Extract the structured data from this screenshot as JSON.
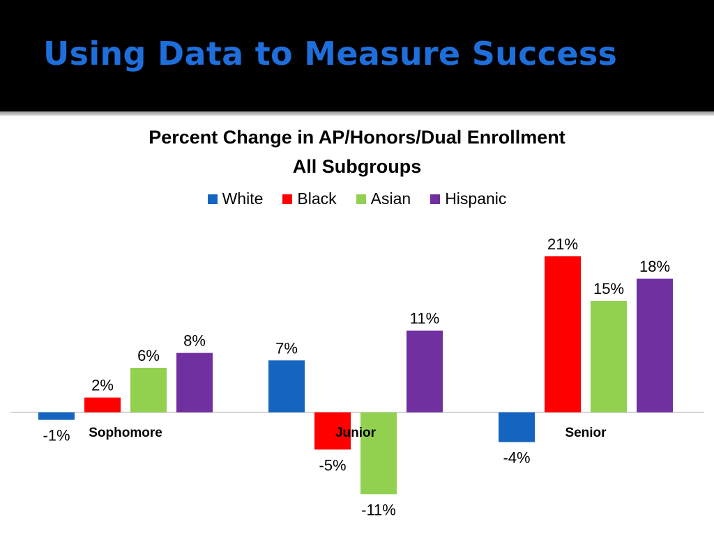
{
  "slide": {
    "title": "Using Data to Measure Success"
  },
  "chart_data": {
    "type": "bar",
    "title": "Percent Change in AP/Honors/Dual Enrollment",
    "subtitle": "All Subgroups",
    "categories": [
      "Sophomore",
      "Junior",
      "Senior"
    ],
    "series": [
      {
        "name": "White",
        "color": "#1565c0",
        "values": [
          -1,
          7,
          -4
        ],
        "labels": [
          "-1%",
          "7%",
          "-4%"
        ]
      },
      {
        "name": "Black",
        "color": "#ff0000",
        "values": [
          2,
          -5,
          21
        ],
        "labels": [
          "2%",
          "-5%",
          "21%"
        ]
      },
      {
        "name": "Asian",
        "color": "#92d050",
        "values": [
          6,
          -11,
          15
        ],
        "labels": [
          "6%",
          "-11%",
          "15%"
        ]
      },
      {
        "name": "Hispanic",
        "color": "#7030a0",
        "values": [
          8,
          11,
          18
        ],
        "labels": [
          "8%",
          "11%",
          "18%"
        ]
      }
    ],
    "xlabel": "",
    "ylabel": "",
    "ylim": [
      -11,
      21
    ],
    "grid": false,
    "legend_position": "top"
  }
}
